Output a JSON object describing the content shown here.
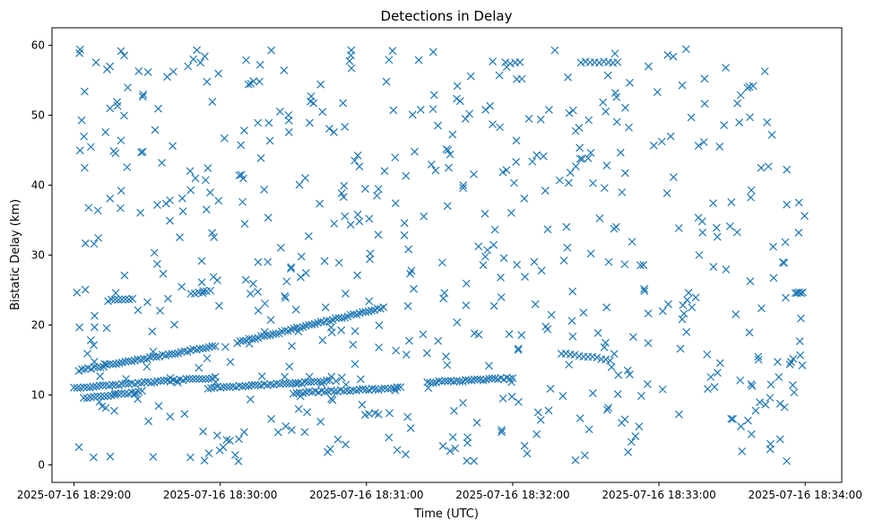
{
  "chart_data": {
    "type": "scatter",
    "title": "Detections in Delay",
    "xlabel": "Time (UTC)",
    "ylabel": "Bistatic Delay (km)",
    "marker": "x",
    "color": "#1f77b4",
    "grid": false,
    "xlim": [
      "2025-07-16 18:28:51",
      "2025-07-16 18:34:15"
    ],
    "ylim": [
      -2.5,
      62.5
    ],
    "xticks": [
      "2025-07-16 18:29:00",
      "2025-07-16 18:30:00",
      "2025-07-16 18:31:00",
      "2025-07-16 18:32:00",
      "2025-07-16 18:33:00",
      "2025-07-16 18:34:00"
    ],
    "yticks": [
      "0",
      "10",
      "20",
      "30",
      "40",
      "50",
      "60"
    ],
    "series": [
      {
        "kind": "tracks",
        "tracks": [
          {
            "start": "2025-07-16 18:29:02",
            "end": "2025-07-16 18:29:58",
            "y_start": 13.5,
            "y_end": 17.0,
            "count": 45
          },
          {
            "start": "2025-07-16 18:30:07",
            "end": "2025-07-16 18:31:07",
            "y_start": 17.5,
            "y_end": 22.5,
            "count": 50
          },
          {
            "start": "2025-07-16 18:29:00",
            "end": "2025-07-16 18:29:58",
            "y_start": 11.0,
            "y_end": 12.5,
            "count": 45
          },
          {
            "start": "2025-07-16 18:29:55",
            "end": "2025-07-16 18:30:45",
            "y_start": 11.0,
            "y_end": 12.0,
            "count": 40
          },
          {
            "start": "2025-07-16 18:30:30",
            "end": "2025-07-16 18:31:14",
            "y_start": 10.3,
            "y_end": 11.0,
            "count": 35
          },
          {
            "start": "2025-07-16 18:31:25",
            "end": "2025-07-16 18:32:00",
            "y_start": 11.8,
            "y_end": 12.4,
            "count": 30
          },
          {
            "start": "2025-07-16 18:29:04",
            "end": "2025-07-16 18:29:28",
            "y_start": 9.5,
            "y_end": 10.5,
            "count": 18
          },
          {
            "start": "2025-07-16 18:29:14",
            "end": "2025-07-16 18:29:24",
            "y_start": 23.5,
            "y_end": 23.8,
            "count": 8
          },
          {
            "start": "2025-07-16 18:29:48",
            "end": "2025-07-16 18:29:56",
            "y_start": 24.5,
            "y_end": 24.8,
            "count": 6
          },
          {
            "start": "2025-07-16 18:31:57",
            "end": "2025-07-16 18:32:03",
            "y_start": 57.5,
            "y_end": 57.5,
            "count": 4
          },
          {
            "start": "2025-07-16 18:32:28",
            "end": "2025-07-16 18:32:43",
            "y_start": 57.6,
            "y_end": 57.6,
            "count": 9
          },
          {
            "start": "2025-07-16 18:33:56",
            "end": "2025-07-16 18:33:59",
            "y_start": 24.6,
            "y_end": 24.6,
            "count": 5
          },
          {
            "start": "2025-07-16 18:32:20",
            "end": "2025-07-16 18:32:40",
            "y_start": 16.0,
            "y_end": 15.0,
            "count": 12
          }
        ]
      },
      {
        "kind": "scatter_cloud",
        "count": 600,
        "x_range": [
          "2025-07-16 18:29:00",
          "2025-07-16 18:34:00"
        ],
        "y_range": [
          0.5,
          59.5
        ],
        "seed": 7
      }
    ]
  }
}
